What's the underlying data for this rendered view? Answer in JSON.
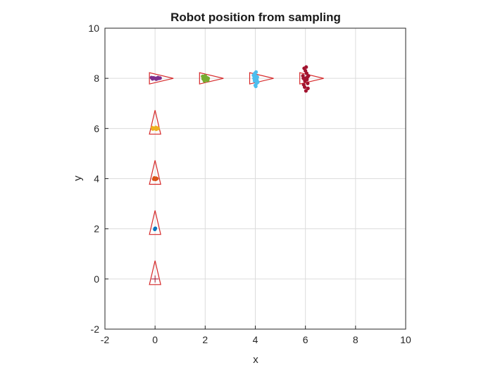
{
  "chart_data": {
    "type": "scatter",
    "title": "Robot position from sampling",
    "xlabel": "x",
    "ylabel": "y",
    "xlim": [
      -2,
      10
    ],
    "ylim": [
      -2,
      10
    ],
    "xticks": [
      -2,
      0,
      2,
      4,
      6,
      8,
      10
    ],
    "yticks": [
      -2,
      0,
      2,
      4,
      6,
      8,
      10
    ],
    "grid": true,
    "robot_color": "#d62728",
    "robots": [
      {
        "x": 0,
        "y": 0,
        "heading": "up"
      },
      {
        "x": 0,
        "y": 2,
        "heading": "up"
      },
      {
        "x": 0,
        "y": 4,
        "heading": "up"
      },
      {
        "x": 0,
        "y": 6,
        "heading": "up"
      },
      {
        "x": 0,
        "y": 8,
        "heading": "right"
      },
      {
        "x": 2,
        "y": 8,
        "heading": "right"
      },
      {
        "x": 4,
        "y": 8,
        "heading": "right"
      },
      {
        "x": 6,
        "y": 8,
        "heading": "right"
      }
    ],
    "series": [
      {
        "color": "#a2142f",
        "marker": "+",
        "points": [
          [
            0,
            0
          ]
        ]
      },
      {
        "color": "#0072bd",
        "points": [
          [
            0,
            2
          ],
          [
            0.01,
            2.02
          ],
          [
            -0.01,
            1.98
          ],
          [
            0.0,
            2.01
          ]
        ]
      },
      {
        "color": "#d95319",
        "points": [
          [
            0,
            4
          ],
          [
            0.04,
            4.02
          ],
          [
            -0.05,
            3.98
          ],
          [
            0.07,
            4.0
          ],
          [
            -0.03,
            4.03
          ],
          [
            0.02,
            3.97
          ]
        ]
      },
      {
        "color": "#edb120",
        "points": [
          [
            0,
            6
          ],
          [
            0.08,
            6.02
          ],
          [
            -0.09,
            5.98
          ],
          [
            0.12,
            6.0
          ],
          [
            -0.1,
            6.03
          ],
          [
            0.05,
            5.97
          ],
          [
            0.03,
            6.04
          ],
          [
            -0.05,
            6.0
          ]
        ]
      },
      {
        "color": "#7e2f8e",
        "points": [
          [
            0,
            8
          ],
          [
            0.1,
            8.02
          ],
          [
            -0.1,
            7.98
          ],
          [
            0.15,
            8.0
          ],
          [
            -0.14,
            8.03
          ],
          [
            0.05,
            7.97
          ],
          [
            0.2,
            8.01
          ],
          [
            -0.06,
            8.02
          ],
          [
            0.08,
            7.99
          ],
          [
            0.12,
            8.03
          ]
        ]
      },
      {
        "color": "#77ac30",
        "points": [
          [
            2,
            8
          ],
          [
            1.95,
            8.05
          ],
          [
            2.05,
            7.95
          ],
          [
            1.92,
            7.98
          ],
          [
            2.08,
            8.02
          ],
          [
            2.0,
            8.1
          ],
          [
            2.1,
            7.92
          ],
          [
            1.97,
            7.9
          ],
          [
            2.03,
            8.04
          ],
          [
            1.9,
            8.08
          ],
          [
            2.06,
            7.97
          ],
          [
            2.12,
            8.0
          ]
        ]
      },
      {
        "color": "#4dbeee",
        "points": [
          [
            4,
            8
          ],
          [
            3.98,
            8.2
          ],
          [
            4.02,
            8.1
          ],
          [
            3.97,
            7.9
          ],
          [
            4.05,
            7.8
          ],
          [
            4.0,
            7.72
          ],
          [
            4.08,
            8.05
          ],
          [
            3.95,
            8.0
          ],
          [
            4.03,
            8.25
          ],
          [
            4.06,
            7.95
          ],
          [
            3.93,
            8.12
          ],
          [
            4.1,
            7.85
          ],
          [
            4.02,
            7.68
          ],
          [
            3.99,
            7.98
          ]
        ]
      },
      {
        "color": "#a2142f",
        "points": [
          [
            6,
            8
          ],
          [
            5.95,
            8.4
          ],
          [
            6.05,
            8.2
          ],
          [
            5.98,
            7.9
          ],
          [
            6.1,
            7.6
          ],
          [
            6.02,
            7.5
          ],
          [
            5.9,
            8.1
          ],
          [
            6.08,
            8.05
          ],
          [
            6.0,
            8.3
          ],
          [
            5.93,
            7.75
          ],
          [
            6.06,
            7.95
          ],
          [
            6.12,
            8.1
          ],
          [
            5.97,
            7.65
          ],
          [
            6.03,
            8.45
          ],
          [
            5.92,
            8.0
          ],
          [
            6.09,
            7.8
          ]
        ]
      }
    ]
  }
}
